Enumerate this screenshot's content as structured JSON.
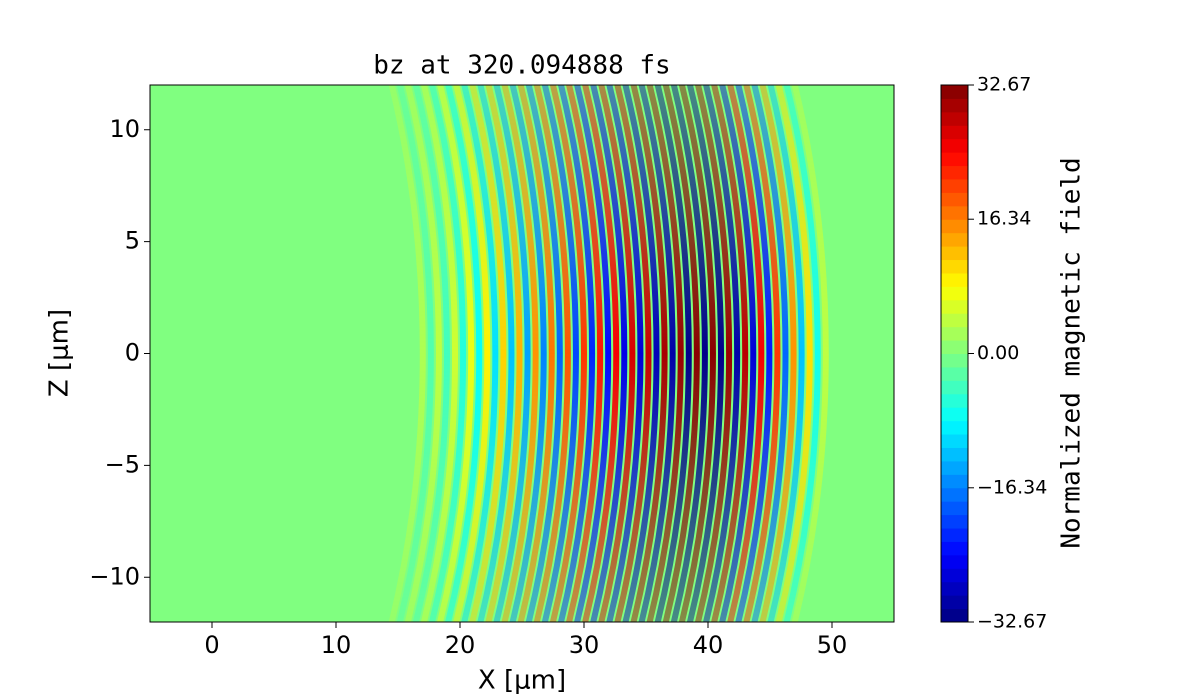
{
  "chart_data": {
    "type": "field",
    "title": "bz at 320.094888 fs",
    "xlabel": "X [μm]",
    "ylabel": "Z [μm]",
    "colorbar_label": "Normalized magnetic field",
    "colormap": "jet",
    "xlim": [
      -5,
      55
    ],
    "xticks": [
      0,
      10,
      20,
      30,
      40,
      50
    ],
    "ylim": [
      -12,
      12
    ],
    "yticks": [
      {
        "value": -10,
        "label": "−10"
      },
      {
        "value": -5,
        "label": "−5"
      },
      0,
      5,
      10
    ],
    "clim": [
      -32.67,
      32.67
    ],
    "cticks": [
      {
        "value": -32.67,
        "label": "−32.67"
      },
      {
        "value": -16.34,
        "label": "−16.34"
      },
      {
        "value": 0,
        "label": "0.00"
      },
      16.34,
      32.67
    ],
    "x": [
      17.0,
      17.65,
      18.3,
      18.95,
      19.6,
      20.25,
      20.9,
      21.55,
      22.2,
      22.85,
      23.5,
      24.15,
      24.8,
      25.45,
      26.1,
      26.75,
      27.4,
      28.05,
      28.7,
      29.35,
      30.0,
      30.65,
      31.3,
      31.95,
      32.6,
      33.25,
      33.9,
      34.55,
      35.2,
      35.85,
      36.5,
      37.15,
      37.8,
      38.45,
      39.1,
      39.75,
      40.4,
      41.05,
      41.7,
      42.35,
      43.0,
      43.65,
      44.3,
      44.95,
      45.6,
      46.25,
      46.9,
      47.55,
      48.2,
      48.85,
      49.5
    ],
    "values": [
      3,
      -3,
      4,
      -4,
      5,
      -6,
      7,
      -8,
      9,
      -10,
      11,
      -12,
      13,
      -14,
      15,
      -16,
      17,
      -18,
      19,
      -20,
      21,
      -22,
      23,
      -24,
      25,
      -26,
      27,
      -27,
      28,
      -29,
      30,
      -30,
      31,
      -32,
      32,
      -32,
      32,
      -32,
      31,
      -30,
      29,
      -27,
      25,
      -23,
      21,
      -18,
      15,
      -12,
      10,
      -7,
      4
    ]
  }
}
